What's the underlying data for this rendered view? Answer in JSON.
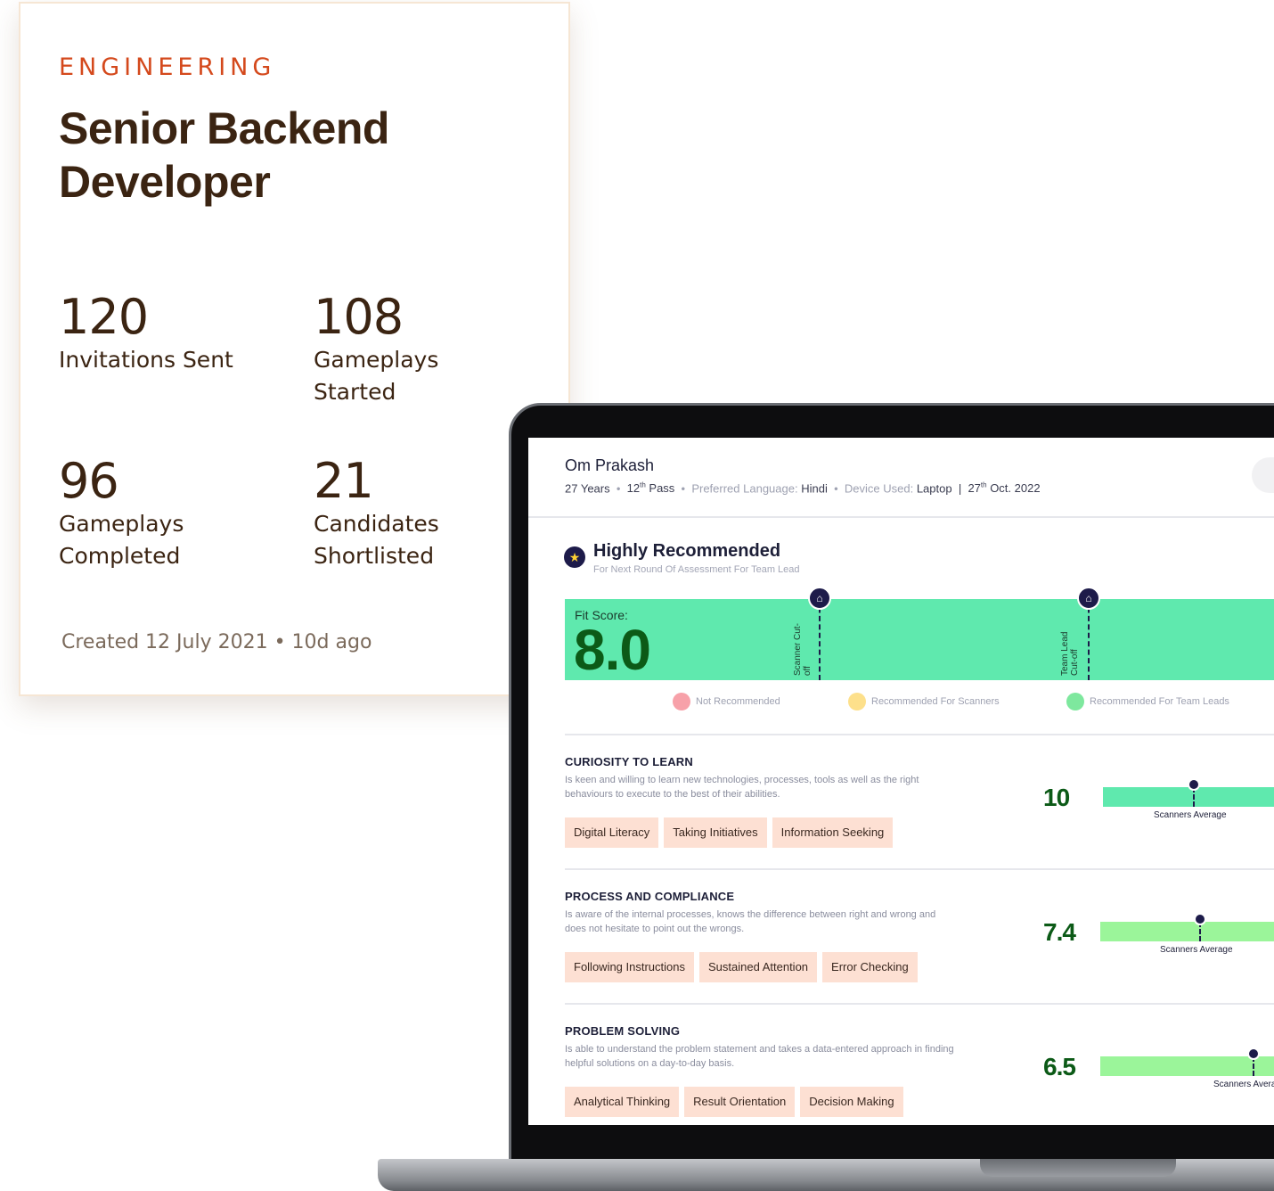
{
  "job": {
    "department": "ENGINEERING",
    "title": "Senior Backend Developer",
    "stats": [
      {
        "value": "120",
        "label": "Invitations Sent"
      },
      {
        "value": "108",
        "label": "Gameplays Started"
      },
      {
        "value": "96",
        "label": "Gameplays Completed"
      },
      {
        "value": "21",
        "label": "Candidates Shortlisted"
      }
    ],
    "created": "Created 12 July 2021 • 10d ago"
  },
  "candidate": {
    "name": "Om Prakash",
    "age": "27 Years",
    "education_num": "12",
    "education_sup": "th",
    "education_rest": " Pass",
    "language_label": "Preferred Language:",
    "language": "Hindi",
    "device_label": "Device Used:",
    "device": "Laptop",
    "date_num": "27",
    "date_sup": "th",
    "date_rest": " Oct. 2022"
  },
  "recommendation": {
    "icon": "star-icon",
    "title": "Highly Recommended",
    "subtitle": "For Next Round Of Assessment For Team Lead",
    "fit_label": "Fit Score:",
    "fit_score": "8.0",
    "fit_value": 8.0,
    "color": "#5fe9ae",
    "cutoffs": [
      {
        "label": "Scanner Cut-off",
        "icon": "cutoff-marker-icon"
      },
      {
        "label": "Team Lead Cut-off",
        "icon": "cutoff-marker-icon"
      }
    ]
  },
  "legend": [
    {
      "label": "Not Recommended",
      "color": "#f7a1a9"
    },
    {
      "label": "Recommended For Scanners",
      "color": "#fde08b"
    },
    {
      "label": "Recommended For Team Leads",
      "color": "#7ee89e"
    }
  ],
  "traits": [
    {
      "title": "CURIOSITY TO LEARN",
      "description": "Is keen and willing to learn new technologies, processes, tools as well as the right behaviours to execute to the best of their abilities.",
      "tags": [
        "Digital Literacy",
        "Taking Initiatives",
        "Information Seeking"
      ],
      "score": "10",
      "bar_color": "#5fe9ae",
      "avg_label": "Scanners Average"
    },
    {
      "title": "PROCESS AND COMPLIANCE",
      "description": "Is aware of the internal processes, knows the difference between right and wrong and does not hesitate to point out the wrongs.",
      "tags": [
        "Following Instructions",
        "Sustained Attention",
        "Error Checking"
      ],
      "score": "7.4",
      "bar_color": "#9bf59a",
      "avg_label": "Scanners Average"
    },
    {
      "title": "PROBLEM SOLVING",
      "description": "Is able to understand the problem statement and takes a data-entered approach in finding helpful solutions on a day-to-day basis.",
      "tags": [
        "Analytical Thinking",
        "Result Orientation",
        "Decision Making"
      ],
      "score": "6.5",
      "bar_color": "#9bf59a",
      "avg_label": "Scanners Average"
    }
  ]
}
